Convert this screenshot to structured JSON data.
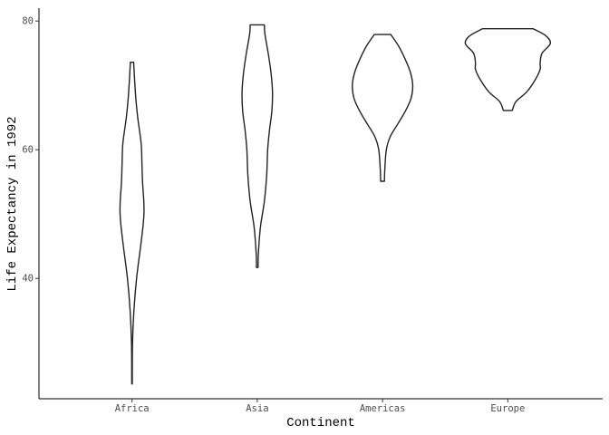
{
  "chart_data": {
    "type": "violin",
    "title": "",
    "xlabel": "Continent",
    "ylabel": "Life Expectancy in 1992",
    "ylim": [
      21.3,
      82.0
    ],
    "yticks": [
      40,
      60,
      80
    ],
    "grid": false,
    "categories": [
      "Africa",
      "Asia",
      "Americas",
      "Europe"
    ],
    "series": [
      {
        "category": "Africa",
        "min": 23.6,
        "max": 73.6,
        "profile": [
          [
            23.6,
            0.2
          ],
          [
            30.0,
            0.4
          ],
          [
            35.0,
            1.5
          ],
          [
            40.0,
            3.6
          ],
          [
            45.0,
            6.8
          ],
          [
            48.0,
            8.6
          ],
          [
            50.0,
            9.4
          ],
          [
            52.0,
            9.3
          ],
          [
            55.0,
            8.3
          ],
          [
            58.0,
            7.8
          ],
          [
            61.0,
            7.2
          ],
          [
            65.0,
            4.5
          ],
          [
            68.0,
            3.0
          ],
          [
            71.0,
            2.0
          ],
          [
            73.6,
            1.3
          ]
        ]
      },
      {
        "category": "Asia",
        "min": 41.7,
        "max": 79.4,
        "profile": [
          [
            41.7,
            0.6
          ],
          [
            44.0,
            0.9
          ],
          [
            48.0,
            2.5
          ],
          [
            52.0,
            5.6
          ],
          [
            56.0,
            7.4
          ],
          [
            60.0,
            8.2
          ],
          [
            63.0,
            9.6
          ],
          [
            66.0,
            11.5
          ],
          [
            69.0,
            12.0
          ],
          [
            72.0,
            10.8
          ],
          [
            75.0,
            8.6
          ],
          [
            78.0,
            6.0
          ],
          [
            79.4,
            5.6
          ]
        ]
      },
      {
        "category": "Americas",
        "min": 55.1,
        "max": 77.9,
        "profile": [
          [
            55.1,
            1.5
          ],
          [
            57.0,
            1.8
          ],
          [
            60.0,
            3.0
          ],
          [
            62.0,
            6.0
          ],
          [
            64.0,
            12.0
          ],
          [
            66.0,
            18.0
          ],
          [
            68.0,
            22.5
          ],
          [
            70.0,
            23.8
          ],
          [
            72.0,
            22.0
          ],
          [
            74.0,
            18.0
          ],
          [
            76.0,
            13.0
          ],
          [
            77.9,
            6.5
          ]
        ]
      },
      {
        "category": "Europe",
        "min": 66.1,
        "max": 78.8,
        "profile": [
          [
            66.1,
            3.5
          ],
          [
            67.5,
            6.5
          ],
          [
            69.0,
            15.0
          ],
          [
            71.0,
            22.0
          ],
          [
            72.5,
            25.5
          ],
          [
            73.5,
            25.5
          ],
          [
            75.0,
            27.0
          ],
          [
            76.5,
            33.5
          ],
          [
            77.7,
            30.0
          ],
          [
            78.8,
            20.0
          ]
        ]
      }
    ]
  }
}
